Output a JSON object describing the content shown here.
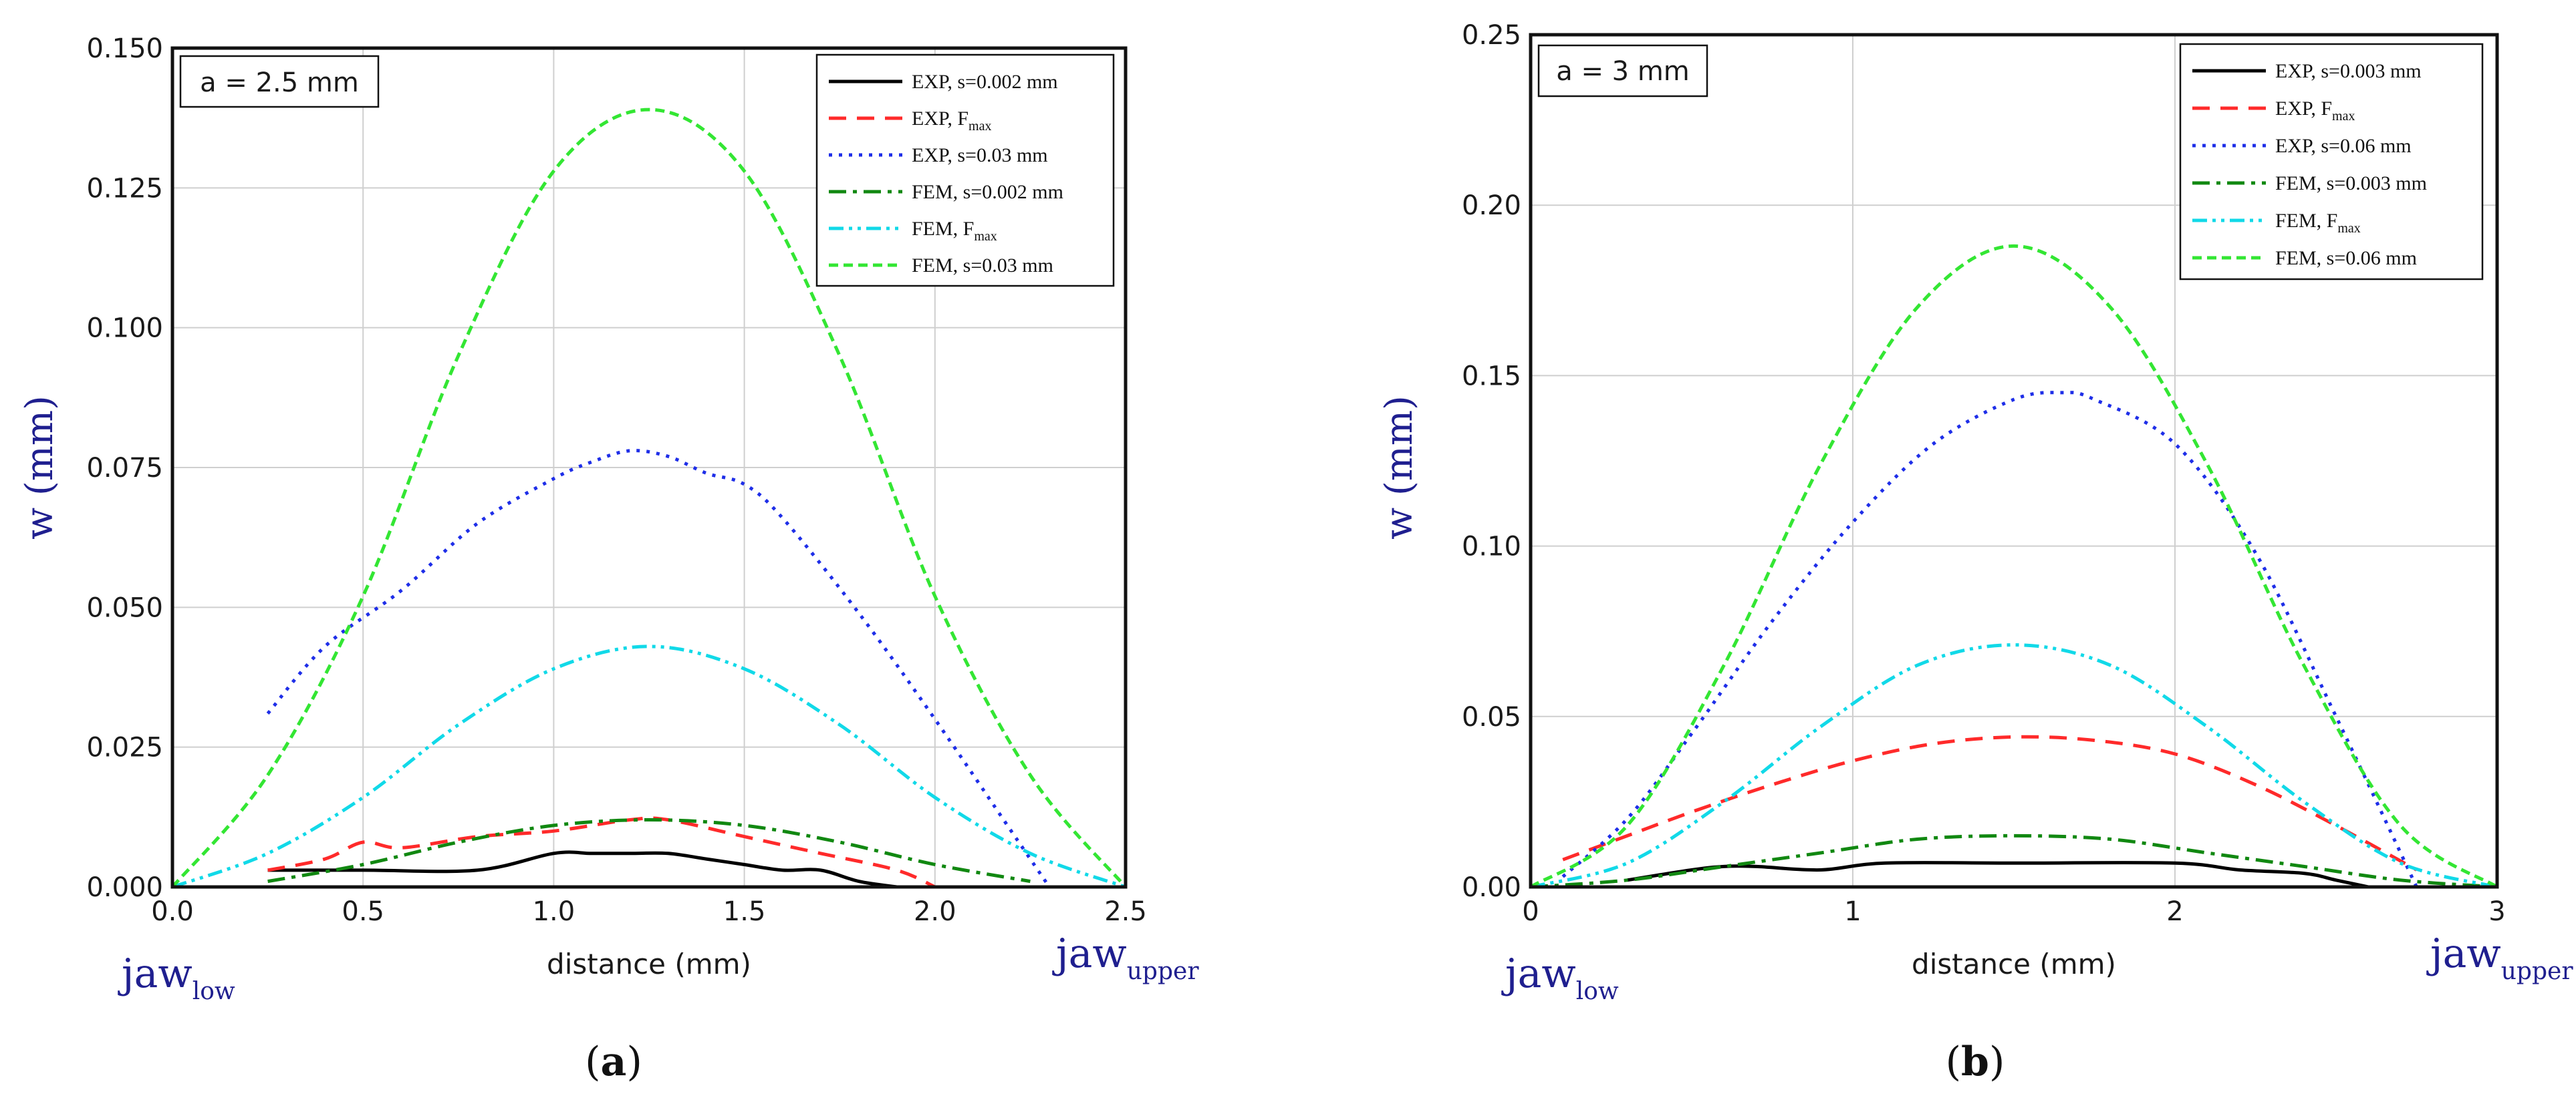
{
  "chart_data": [
    {
      "type": "line",
      "panel": "(a)",
      "caption_label": "a",
      "annotation": "a = 2.5 mm",
      "xlabel": "distance (mm)",
      "ylabel": "w (mm)",
      "xlim": [
        0,
        2.5
      ],
      "ylim": [
        0,
        0.15
      ],
      "xticks": [
        0,
        0.5,
        1.0,
        1.5,
        2.0,
        2.5
      ],
      "xtick_labels": [
        "0.0",
        "0.5",
        "1.0",
        "1.5",
        "2.0",
        "2.5"
      ],
      "yticks": [
        0,
        0.025,
        0.05,
        0.075,
        0.1,
        0.125,
        0.15
      ],
      "ytick_labels": [
        "0.000",
        "0.025",
        "0.050",
        "0.075",
        "0.100",
        "0.125",
        "0.150"
      ],
      "grid": true,
      "legend_position": "top-right",
      "jaw_left": {
        "base": "jaw",
        "sub": "low"
      },
      "jaw_right": {
        "base": "jaw",
        "sub": "upper"
      },
      "series": [
        {
          "name": "EXP, s=0.002 mm",
          "legend_base": "EXP, s=0.002 mm",
          "legend_sub": "",
          "color": "#000000",
          "dash": "solid",
          "x": [
            0.25,
            0.5,
            0.8,
            1.0,
            1.1,
            1.2,
            1.3,
            1.4,
            1.5,
            1.6,
            1.7,
            1.8,
            1.9
          ],
          "y": [
            0.003,
            0.003,
            0.003,
            0.006,
            0.006,
            0.006,
            0.006,
            0.005,
            0.004,
            0.003,
            0.003,
            0.001,
            0.0
          ]
        },
        {
          "name": "EXP, F_max",
          "legend_base": "EXP, F",
          "legend_sub": "max",
          "color": "#ff2a2a",
          "dash": "long-dash",
          "x": [
            0.25,
            0.4,
            0.5,
            0.6,
            0.8,
            1.0,
            1.2,
            1.3,
            1.5,
            1.7,
            1.9,
            2.0
          ],
          "y": [
            0.003,
            0.005,
            0.008,
            0.007,
            0.009,
            0.01,
            0.012,
            0.012,
            0.009,
            0.006,
            0.003,
            0.0
          ]
        },
        {
          "name": "EXP, s=0.03 mm",
          "legend_base": "EXP, s=0.03 mm",
          "legend_sub": "",
          "color": "#1e2ee8",
          "dash": "dot",
          "x": [
            0.25,
            0.4,
            0.6,
            0.8,
            1.0,
            1.1,
            1.2,
            1.3,
            1.4,
            1.5,
            1.6,
            1.8,
            2.0,
            2.2,
            2.3
          ],
          "y": [
            0.031,
            0.043,
            0.053,
            0.065,
            0.073,
            0.076,
            0.078,
            0.077,
            0.074,
            0.072,
            0.066,
            0.049,
            0.03,
            0.01,
            0.0
          ]
        },
        {
          "name": "FEM, s=0.002 mm",
          "legend_base": "FEM, s=0.002 mm",
          "legend_sub": "",
          "color": "#118811",
          "dash": "dash-dot",
          "x": [
            0.25,
            0.5,
            0.75,
            1.0,
            1.25,
            1.5,
            1.75,
            2.0,
            2.25
          ],
          "y": [
            0.001,
            0.004,
            0.008,
            0.011,
            0.012,
            0.011,
            0.008,
            0.004,
            0.001
          ]
        },
        {
          "name": "FEM, F_max",
          "legend_base": "FEM, F",
          "legend_sub": "max",
          "color": "#11d9e8",
          "dash": "dash-dot-dot",
          "x": [
            0.0,
            0.25,
            0.5,
            0.75,
            1.0,
            1.25,
            1.5,
            1.75,
            2.0,
            2.25,
            2.5
          ],
          "y": [
            0.0,
            0.006,
            0.016,
            0.029,
            0.039,
            0.043,
            0.039,
            0.029,
            0.016,
            0.006,
            0.0
          ]
        },
        {
          "name": "FEM, s=0.03 mm",
          "legend_base": "FEM, s=0.03 mm",
          "legend_sub": "",
          "color": "#33e633",
          "dash": "dash",
          "x": [
            0.0,
            0.25,
            0.5,
            0.75,
            1.0,
            1.25,
            1.5,
            1.75,
            2.0,
            2.25,
            2.5
          ],
          "y": [
            0.0,
            0.02,
            0.052,
            0.095,
            0.128,
            0.139,
            0.128,
            0.095,
            0.052,
            0.02,
            0.0
          ]
        }
      ]
    },
    {
      "type": "line",
      "panel": "(b)",
      "caption_label": "b",
      "annotation": "a = 3 mm",
      "xlabel": "distance (mm)",
      "ylabel": "w (mm)",
      "xlim": [
        0,
        3
      ],
      "ylim": [
        0,
        0.25
      ],
      "xticks": [
        0,
        1,
        2,
        3
      ],
      "xtick_labels": [
        "0",
        "1",
        "2",
        "3"
      ],
      "yticks": [
        0,
        0.05,
        0.1,
        0.15,
        0.2,
        0.25
      ],
      "ytick_labels": [
        "0.00",
        "0.05",
        "0.10",
        "0.15",
        "0.20",
        "0.25"
      ],
      "grid": true,
      "legend_position": "top-right",
      "jaw_left": {
        "base": "jaw",
        "sub": "low"
      },
      "jaw_right": {
        "base": "jaw",
        "sub": "upper"
      },
      "series": [
        {
          "name": "EXP, s=0.003 mm",
          "legend_base": "EXP, s=0.003 mm",
          "legend_sub": "",
          "color": "#000000",
          "dash": "solid",
          "x": [
            0.3,
            0.5,
            0.6,
            0.7,
            0.9,
            1.1,
            1.5,
            2.0,
            2.2,
            2.4,
            2.5,
            2.6
          ],
          "y": [
            0.002,
            0.005,
            0.006,
            0.006,
            0.005,
            0.007,
            0.007,
            0.007,
            0.005,
            0.004,
            0.002,
            0.0
          ]
        },
        {
          "name": "EXP, F_max",
          "legend_base": "EXP, F",
          "legend_sub": "max",
          "color": "#ff2a2a",
          "dash": "long-dash",
          "x": [
            0.1,
            0.3,
            0.5,
            0.75,
            1.0,
            1.25,
            1.5,
            1.75,
            2.0,
            2.25,
            2.5,
            2.75
          ],
          "y": [
            0.008,
            0.015,
            0.022,
            0.03,
            0.037,
            0.042,
            0.044,
            0.043,
            0.039,
            0.03,
            0.018,
            0.005
          ]
        },
        {
          "name": "EXP, s=0.06 mm",
          "legend_base": "EXP, s=0.06 mm",
          "legend_sub": "",
          "color": "#1e2ee8",
          "dash": "dot",
          "x": [
            0.1,
            0.3,
            0.5,
            0.75,
            1.0,
            1.25,
            1.5,
            1.65,
            1.75,
            2.0,
            2.25,
            2.5,
            2.75
          ],
          "y": [
            0.003,
            0.02,
            0.045,
            0.078,
            0.107,
            0.13,
            0.143,
            0.145,
            0.143,
            0.13,
            0.098,
            0.05,
            0.0
          ]
        },
        {
          "name": "FEM, s=0.003 mm",
          "legend_base": "FEM, s=0.003 mm",
          "legend_sub": "",
          "color": "#118811",
          "dash": "dash-dot",
          "x": [
            0.0,
            0.3,
            0.6,
            0.9,
            1.2,
            1.5,
            1.8,
            2.1,
            2.4,
            2.7,
            3.0
          ],
          "y": [
            0.0,
            0.002,
            0.006,
            0.01,
            0.014,
            0.015,
            0.014,
            0.01,
            0.006,
            0.002,
            0.0
          ]
        },
        {
          "name": "FEM, F_max",
          "legend_base": "FEM, F",
          "legend_sub": "max",
          "color": "#11d9e8",
          "dash": "dash-dot-dot",
          "x": [
            0.0,
            0.3,
            0.6,
            0.9,
            1.2,
            1.5,
            1.8,
            2.1,
            2.4,
            2.7,
            3.0
          ],
          "y": [
            0.0,
            0.007,
            0.025,
            0.047,
            0.065,
            0.071,
            0.065,
            0.047,
            0.025,
            0.007,
            0.0
          ]
        },
        {
          "name": "FEM, s=0.06 mm",
          "legend_base": "FEM, s=0.06 mm",
          "legend_sub": "",
          "color": "#33e633",
          "dash": "dash",
          "x": [
            0.0,
            0.3,
            0.6,
            0.9,
            1.2,
            1.5,
            1.8,
            2.1,
            2.4,
            2.7,
            3.0
          ],
          "y": [
            0.0,
            0.018,
            0.065,
            0.124,
            0.17,
            0.188,
            0.17,
            0.124,
            0.065,
            0.018,
            0.0
          ]
        }
      ]
    }
  ]
}
